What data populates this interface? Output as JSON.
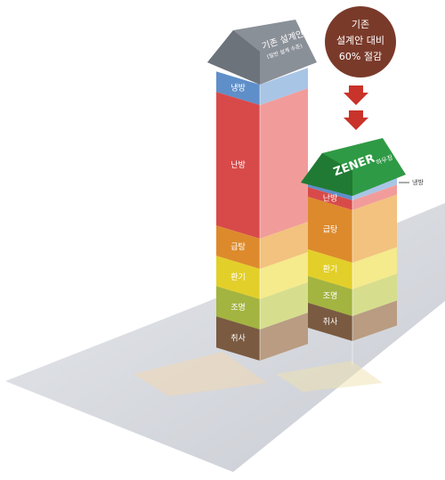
{
  "callout": {
    "lines": [
      "기존",
      "설계안 대비",
      "60% 절감"
    ]
  },
  "towers": [
    {
      "roof": [
        "기존 설계안",
        "(일반 설계 수준)"
      ],
      "segments": [
        "냉방",
        "난방",
        "급탕",
        "환기",
        "조명",
        "취사"
      ]
    },
    {
      "roof": [
        "ZENER",
        "하우징"
      ],
      "side_label": "냉방",
      "segments": [
        "난방",
        "급탕",
        "환기",
        "조명",
        "취사"
      ]
    }
  ]
}
